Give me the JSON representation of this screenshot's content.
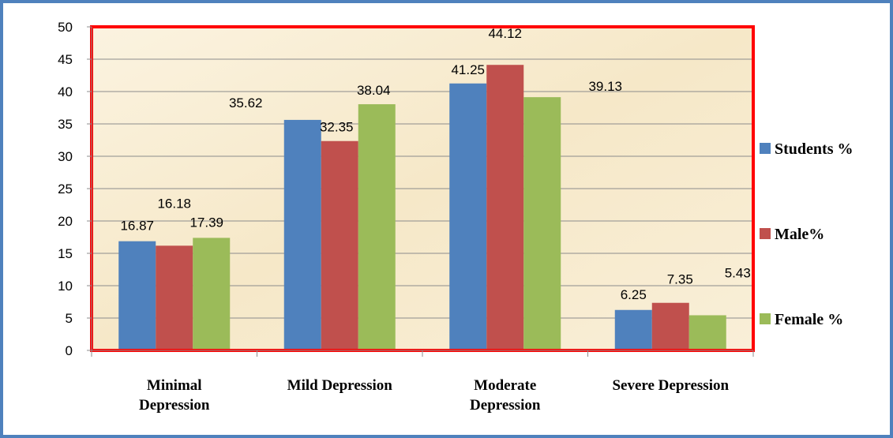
{
  "chart_data": {
    "type": "bar",
    "categories": [
      [
        "Minimal",
        "Depression"
      ],
      [
        "Mild Depression"
      ],
      [
        "Moderate",
        "Depression"
      ],
      [
        "Severe Depression"
      ]
    ],
    "series": [
      {
        "name": "Students %",
        "color": "#4f81bd",
        "values": [
          16.87,
          35.62,
          41.25,
          6.25
        ]
      },
      {
        "name": "Male%",
        "color": "#c0504d",
        "values": [
          16.18,
          32.35,
          44.12,
          7.35
        ]
      },
      {
        "name": "Female %",
        "color": "#9bbb59",
        "values": [
          17.39,
          38.04,
          39.13,
          5.43
        ]
      }
    ],
    "ylim": [
      0,
      50
    ],
    "yticks": [
      0,
      5,
      10,
      15,
      20,
      25,
      30,
      35,
      40,
      45,
      50
    ],
    "title": "",
    "xlabel": "",
    "ylabel": "",
    "grid": true,
    "legend_position": "right",
    "plot_background": "#f7ebd0",
    "plot_border_color": "#ff0000"
  }
}
